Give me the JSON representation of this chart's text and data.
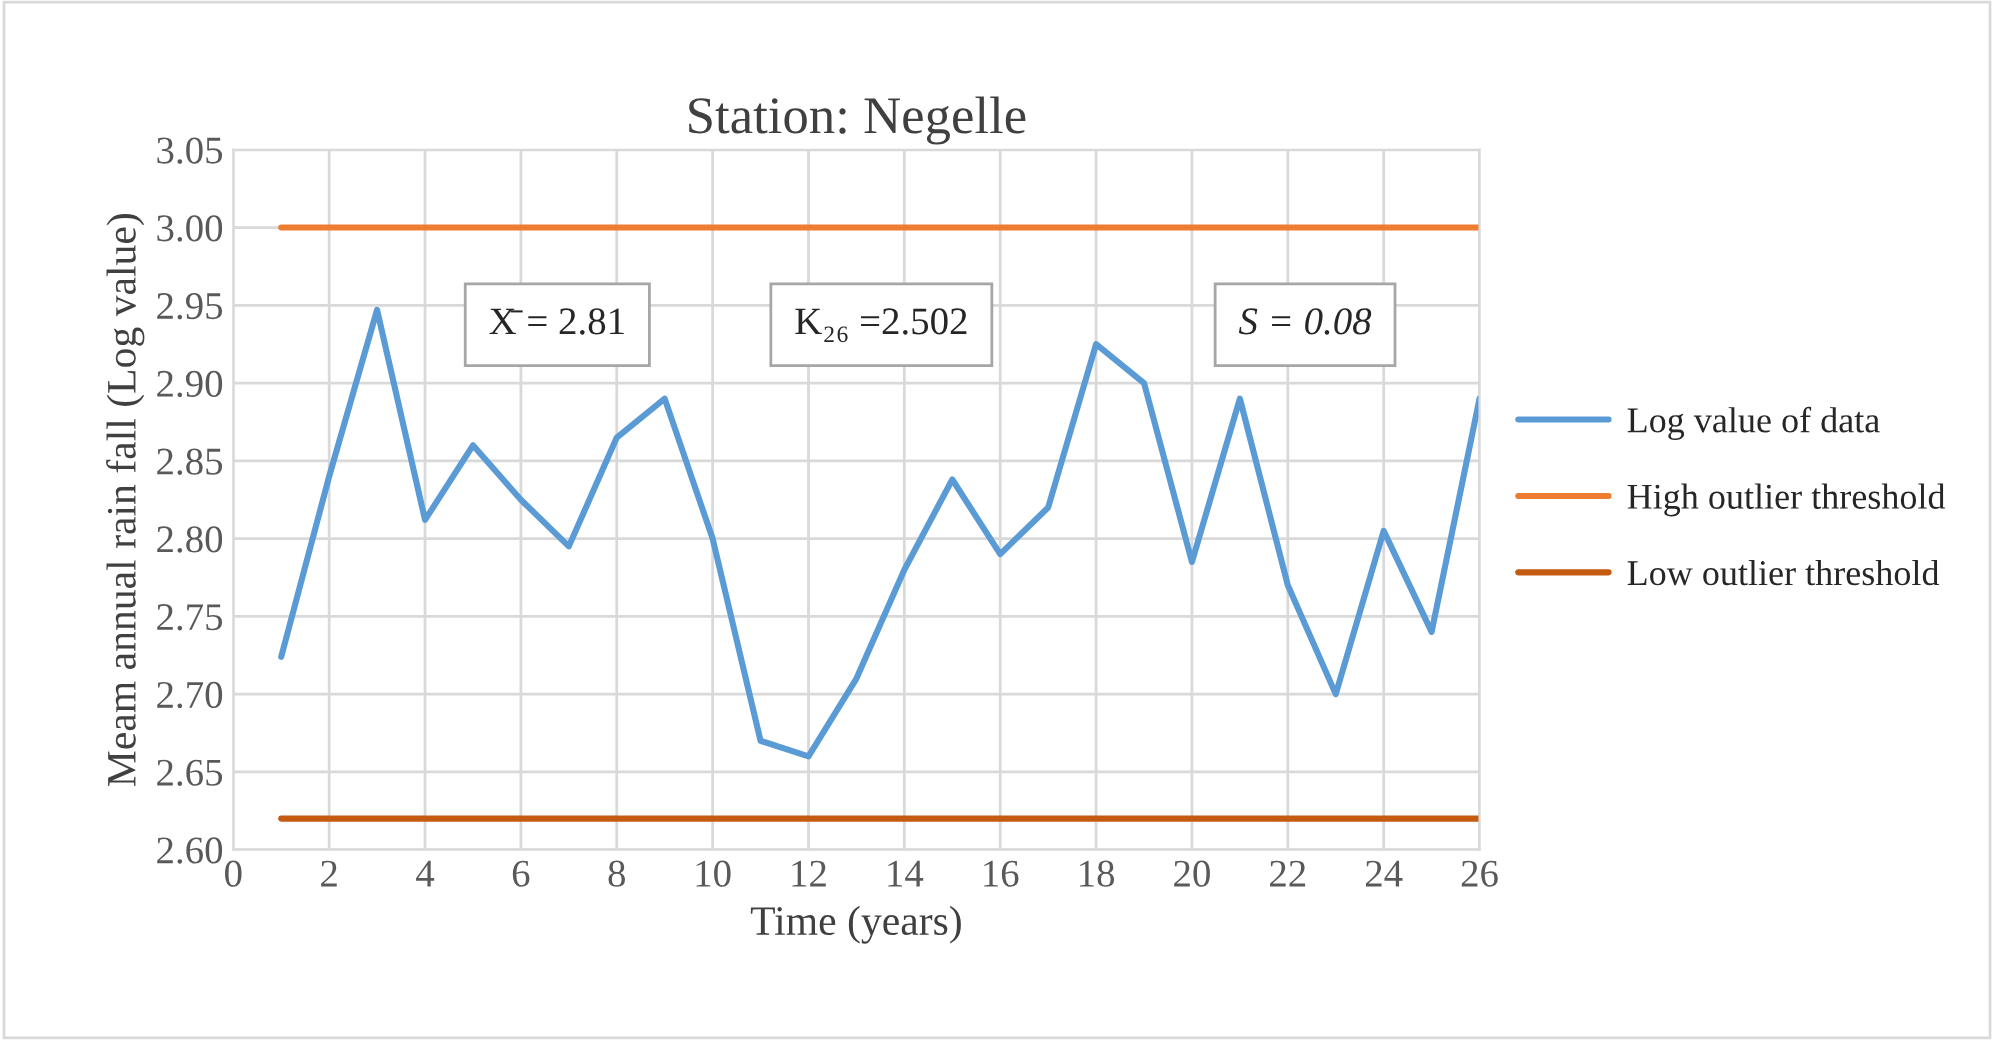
{
  "chart_data": {
    "type": "line",
    "title": "Station: Negelle",
    "xlabel": "Time (years)",
    "ylabel": "Meam annual rain fall (Log value)",
    "x": [
      1,
      2,
      3,
      4,
      5,
      6,
      7,
      8,
      9,
      10,
      11,
      12,
      13,
      14,
      15,
      16,
      17,
      18,
      19,
      20,
      21,
      22,
      23,
      24,
      25,
      26
    ],
    "series": [
      {
        "name": "Log value of data",
        "color": "#5b9bd5",
        "values": [
          2.724,
          2.84,
          2.947,
          2.812,
          2.86,
          2.825,
          2.795,
          2.865,
          2.89,
          2.8,
          2.67,
          2.66,
          2.71,
          2.78,
          2.838,
          2.79,
          2.82,
          2.925,
          2.9,
          2.785,
          2.89,
          2.77,
          2.7,
          2.805,
          2.74,
          2.89
        ]
      },
      {
        "name": "High outlier threshold",
        "color": "#ed7d31",
        "values": [
          3.0,
          3.0,
          3.0,
          3.0,
          3.0,
          3.0,
          3.0,
          3.0,
          3.0,
          3.0,
          3.0,
          3.0,
          3.0,
          3.0,
          3.0,
          3.0,
          3.0,
          3.0,
          3.0,
          3.0,
          3.0,
          3.0,
          3.0,
          3.0,
          3.0,
          3.0
        ]
      },
      {
        "name": "Low outlier threshold",
        "color": "#c55a11",
        "values": [
          2.62,
          2.62,
          2.62,
          2.62,
          2.62,
          2.62,
          2.62,
          2.62,
          2.62,
          2.62,
          2.62,
          2.62,
          2.62,
          2.62,
          2.62,
          2.62,
          2.62,
          2.62,
          2.62,
          2.62,
          2.62,
          2.62,
          2.62,
          2.62,
          2.62,
          2.62
        ]
      }
    ],
    "annotations": [
      "X̄ = 2.81",
      "K₂₆ =2.502",
      "S = 0.08"
    ],
    "xlim": [
      0,
      26
    ],
    "xticks": [
      0,
      2,
      4,
      6,
      8,
      10,
      12,
      14,
      16,
      18,
      20,
      22,
      24,
      26
    ],
    "ylim": [
      2.6,
      3.05
    ],
    "yticks": [
      {
        "value": 2.6,
        "label": "2.60"
      },
      {
        "value": 2.65,
        "label": "2.65"
      },
      {
        "value": 2.7,
        "label": "2.70"
      },
      {
        "value": 2.75,
        "label": "2.75"
      },
      {
        "value": 2.8,
        "label": "2.80"
      },
      {
        "value": 2.85,
        "label": "2.85"
      },
      {
        "value": 2.9,
        "label": "2.90"
      },
      {
        "value": 2.95,
        "label": "2.95"
      },
      {
        "value": 3.0,
        "label": "3.00"
      },
      {
        "value": 3.05,
        "label": "3.05"
      }
    ],
    "grid": "xy",
    "legend": "right",
    "line_style": "solid",
    "marker": "none"
  }
}
